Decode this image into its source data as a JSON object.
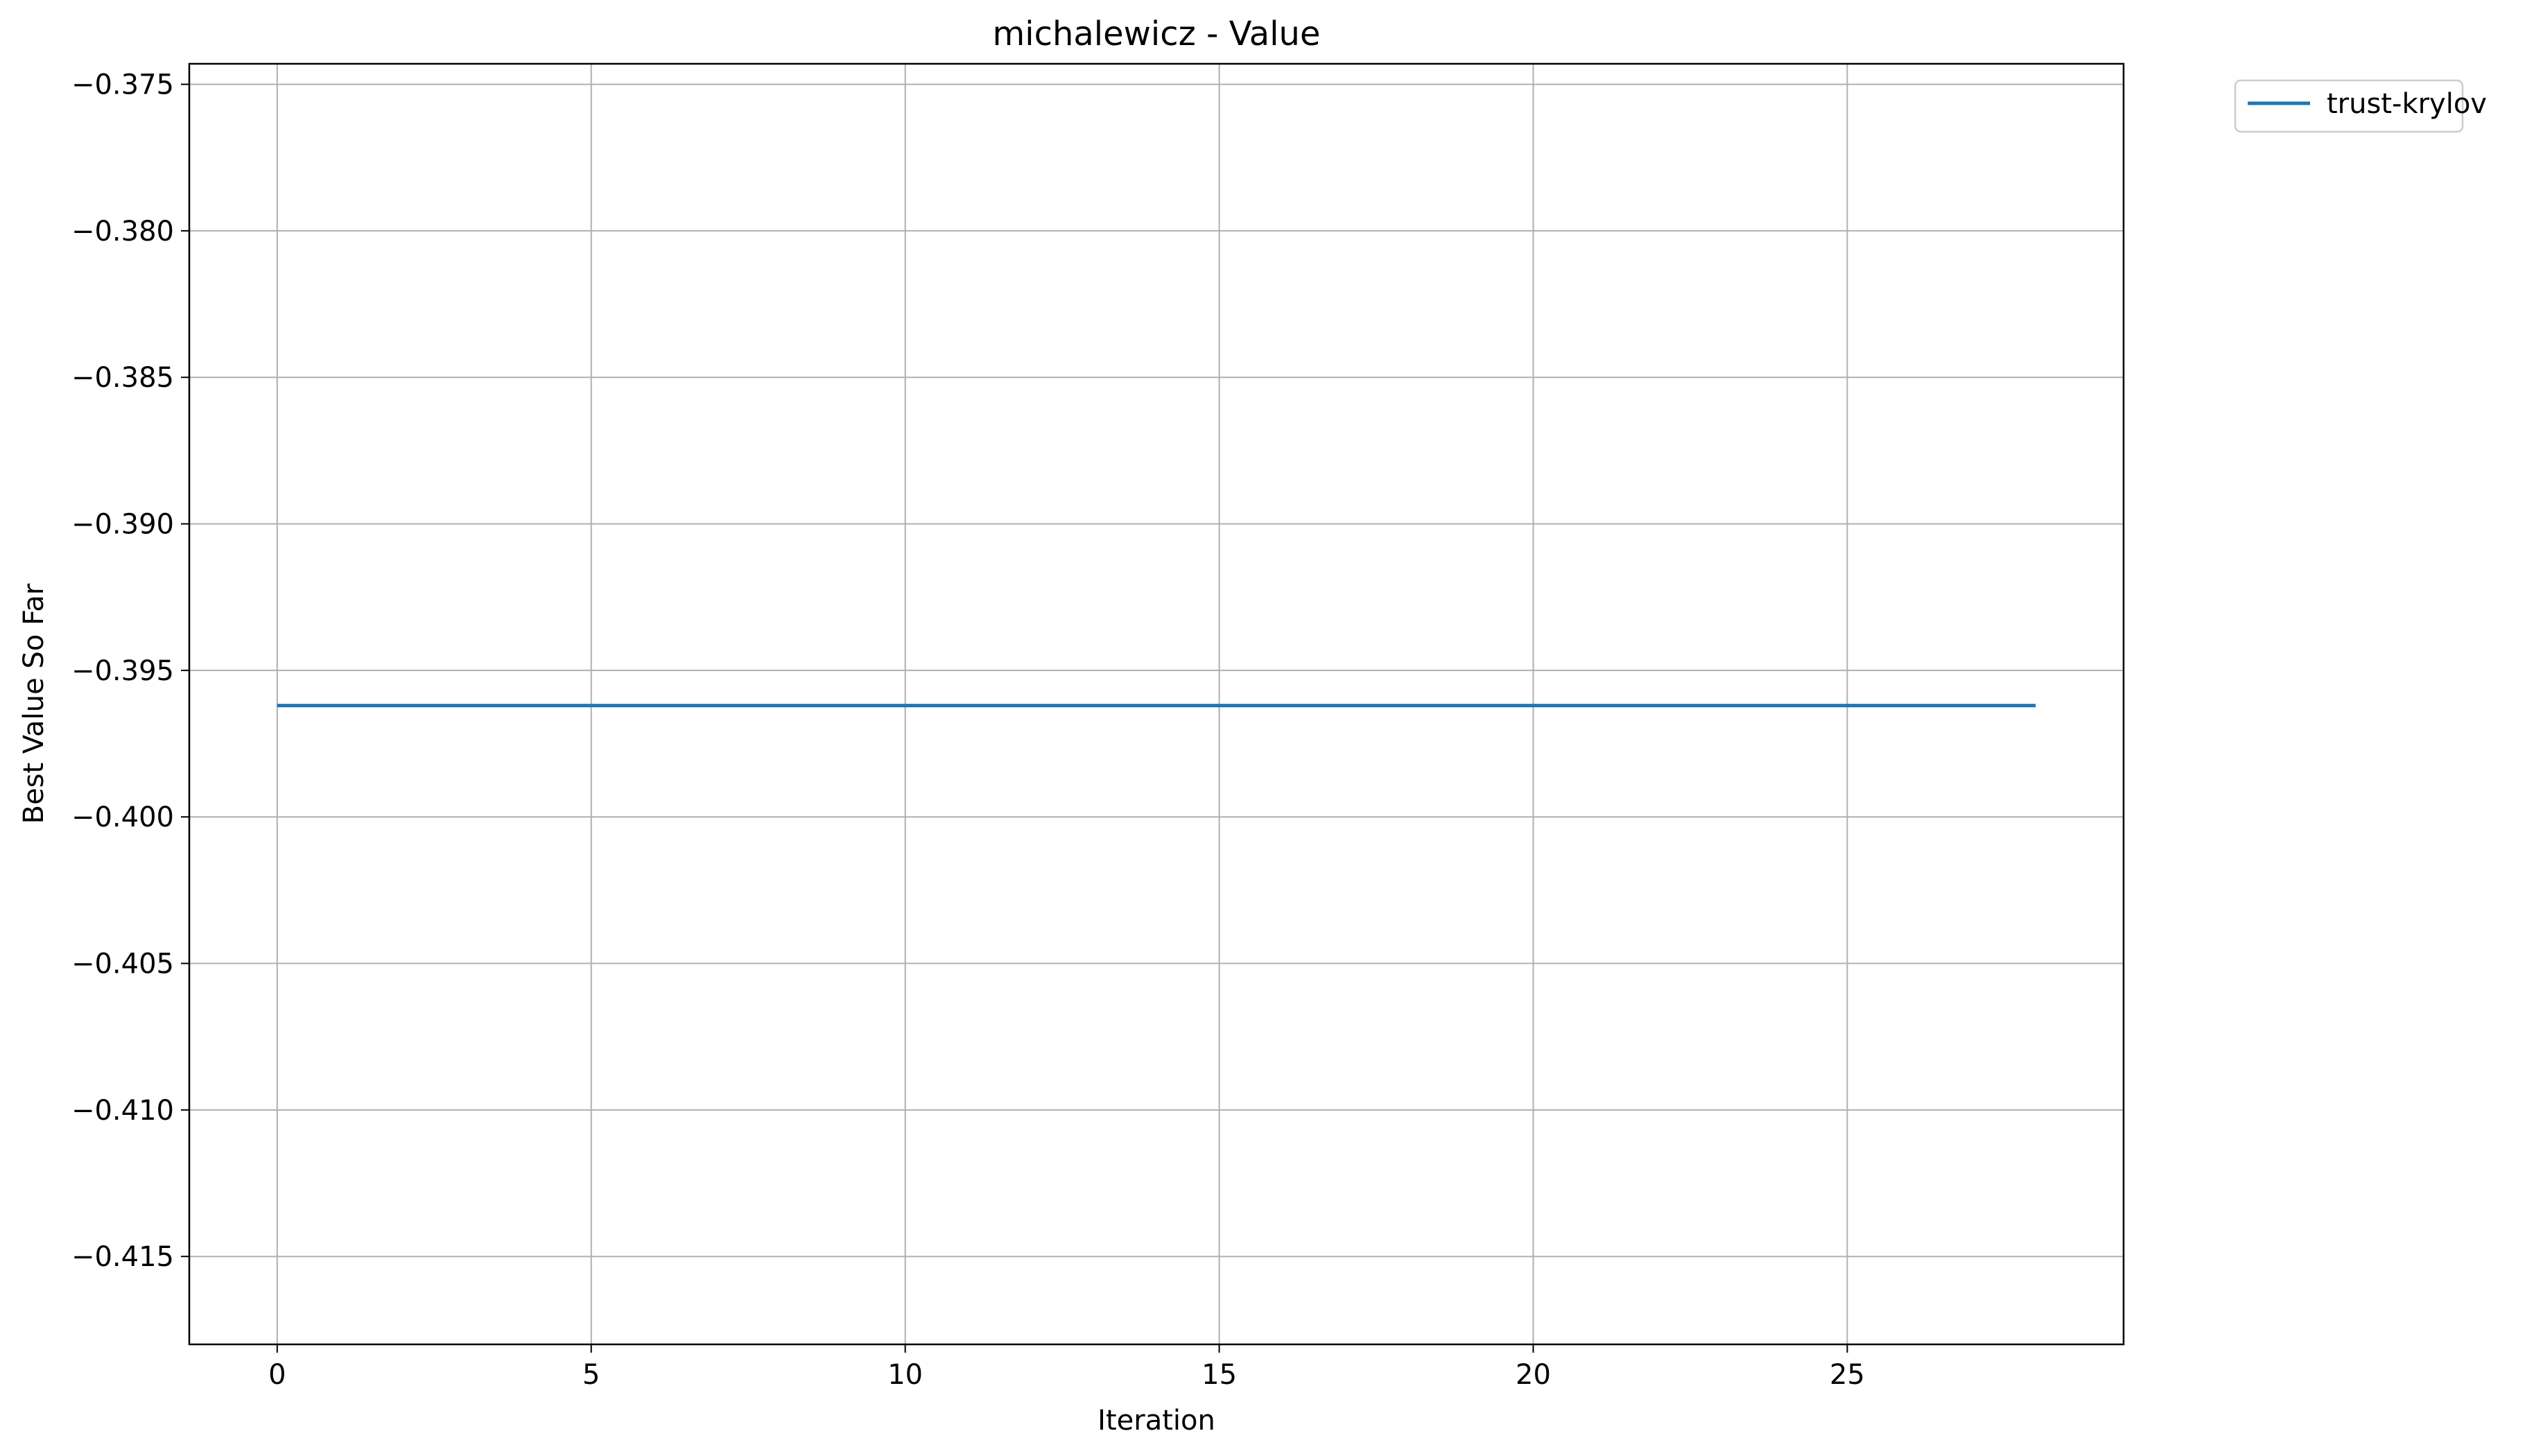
{
  "chart_data": {
    "type": "line",
    "title": "michalewicz - Value",
    "xlabel": "Iteration",
    "ylabel": "Best Value So Far",
    "xlim": [
      -1.4,
      29.4
    ],
    "ylim": [
      -0.418,
      -0.3743
    ],
    "xticks": [
      0,
      5,
      10,
      15,
      20,
      25
    ],
    "xtick_labels": [
      "0",
      "5",
      "10",
      "15",
      "20",
      "25"
    ],
    "yticks": [
      -0.375,
      -0.38,
      -0.385,
      -0.39,
      -0.395,
      -0.4,
      -0.405,
      -0.41,
      -0.415
    ],
    "ytick_labels": [
      "−0.375",
      "−0.380",
      "−0.385",
      "−0.390",
      "−0.395",
      "−0.400",
      "−0.405",
      "−0.410",
      "−0.415"
    ],
    "grid": true,
    "legend_position": "outside-top-right",
    "series": [
      {
        "name": "trust-krylov",
        "color": "#1f77b4",
        "x": [
          0,
          1,
          2,
          3,
          4,
          5,
          6,
          7,
          8,
          9,
          10,
          11,
          12,
          13,
          14,
          15,
          16,
          17,
          18,
          19,
          20,
          21,
          22,
          23,
          24,
          25,
          26,
          27,
          28
        ],
        "y": [
          -0.3962,
          -0.3962,
          -0.3962,
          -0.3962,
          -0.3962,
          -0.3962,
          -0.3962,
          -0.3962,
          -0.3962,
          -0.3962,
          -0.3962,
          -0.3962,
          -0.3962,
          -0.3962,
          -0.3962,
          -0.3962,
          -0.3962,
          -0.3962,
          -0.3962,
          -0.3962,
          -0.3962,
          -0.3962,
          -0.3962,
          -0.3962,
          -0.3962,
          -0.3962,
          -0.3962,
          -0.3962,
          -0.3962
        ]
      }
    ]
  }
}
